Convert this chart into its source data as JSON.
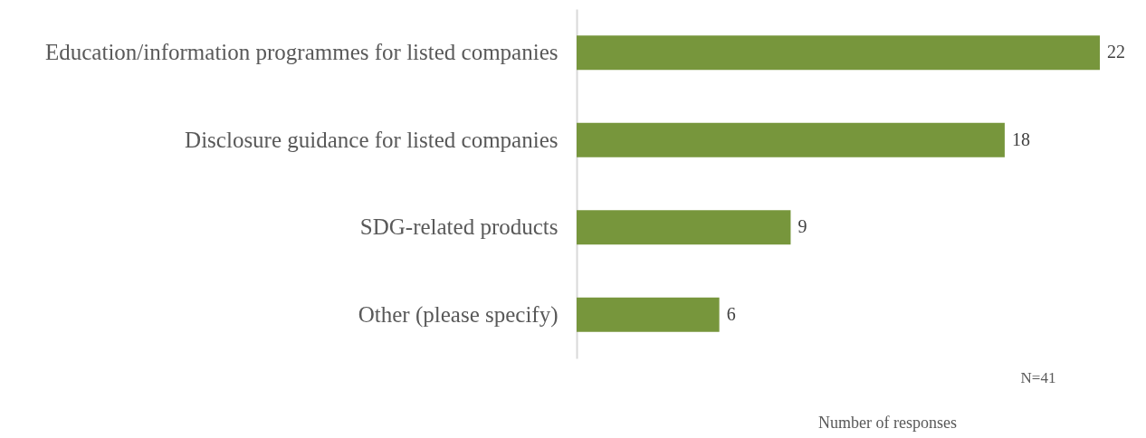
{
  "chart_data": {
    "type": "bar",
    "orientation": "horizontal",
    "categories": [
      "Education/information programmes for listed companies",
      "Disclosure guidance for listed companies",
      "SDG-related products",
      "Other (please specify)"
    ],
    "values": [
      22,
      18,
      9,
      6
    ],
    "color": "#77963c",
    "data_labels": true,
    "xlabel": "Number of responses",
    "tick_labels": "y",
    "annotations": [
      "N=41"
    ]
  }
}
